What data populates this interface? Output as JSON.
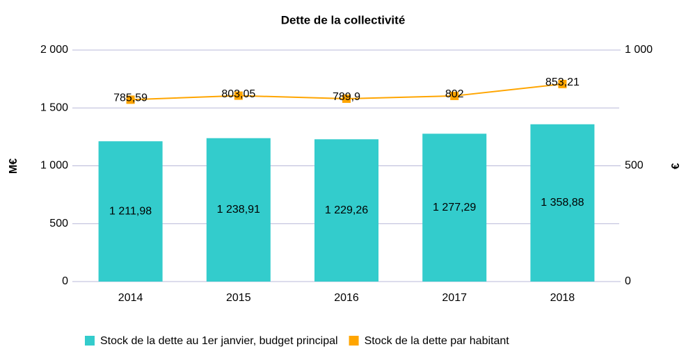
{
  "chart_data": {
    "type": "bar",
    "title": "Dette de la collectivité",
    "ylabel": "M€",
    "y2label": "€",
    "categories": [
      "2014",
      "2015",
      "2016",
      "2017",
      "2018"
    ],
    "series": [
      {
        "name": "Stock de la dette au 1er janvier, budget principal",
        "type": "bar",
        "color": "#33cccc",
        "axis": "y",
        "values": [
          1211.98,
          1238.91,
          1229.26,
          1277.29,
          1358.88
        ],
        "value_labels": [
          "1 211,98",
          "1 238,91",
          "1 229,26",
          "1 277,29",
          "1 358,88"
        ]
      },
      {
        "name": "Stock de la dette par habitant",
        "type": "line",
        "color": "#ffa500",
        "axis": "y2",
        "values": [
          785.59,
          803.05,
          789.9,
          802,
          853.21
        ],
        "value_labels": [
          "785,59",
          "803,05",
          "789,9",
          "802",
          "853,21"
        ]
      }
    ],
    "ylim": [
      0,
      2000
    ],
    "yticks": [
      0,
      500,
      {
        "value": 1000,
        "label": "1 000"
      },
      {
        "value": 1500,
        "label": "1 500"
      },
      {
        "value": 2000,
        "label": "2 000"
      }
    ],
    "y2lim": [
      0,
      1000
    ],
    "y2ticks": [
      0,
      500,
      {
        "value": 1000,
        "label": "1 000"
      }
    ],
    "grid": true,
    "legend": "bottom"
  }
}
